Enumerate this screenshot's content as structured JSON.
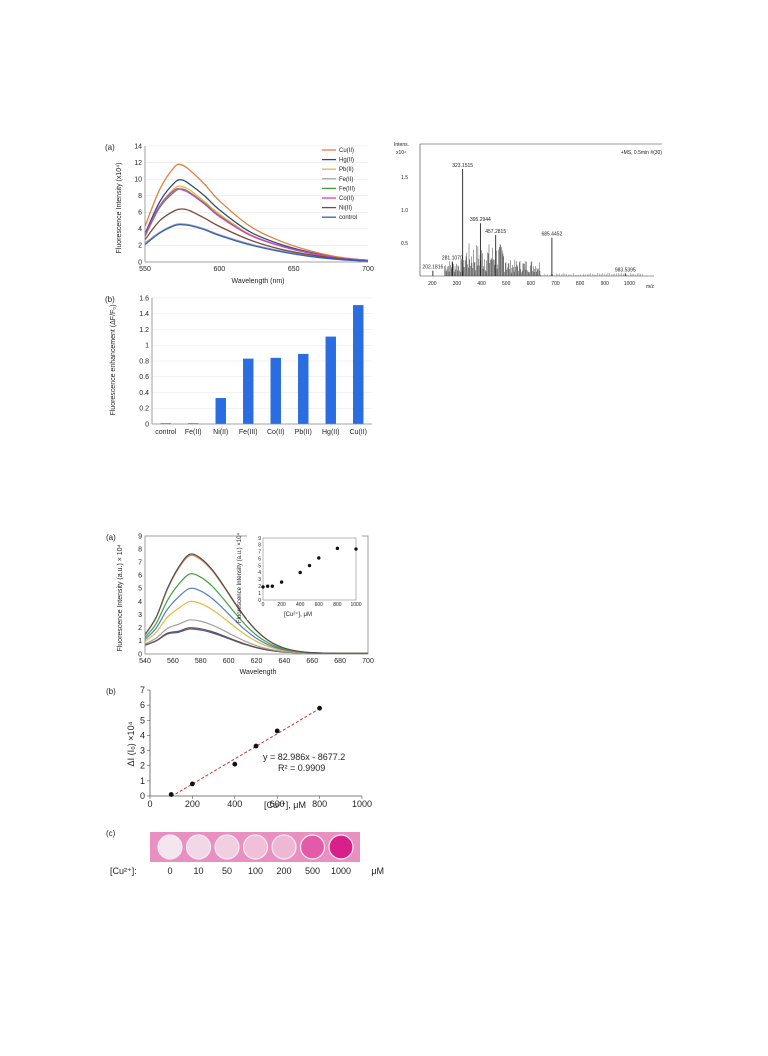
{
  "figure1": {
    "panel_a": {
      "label": "(a)",
      "chart_data": {
        "type": "line",
        "xlabel": "Wavelength (nm)",
        "ylabel": "Fluorescence Intensity (x10⁴)",
        "xlim": [
          550,
          700
        ],
        "ylim": [
          0,
          14
        ],
        "xticks": [
          550,
          600,
          650,
          700
        ],
        "yticks": [
          0,
          2,
          4,
          6,
          8,
          10,
          12,
          14
        ],
        "x": [
          550,
          560,
          570,
          575,
          580,
          590,
          600,
          620,
          640,
          660,
          680,
          700
        ],
        "series": [
          {
            "name": "Cu(II)",
            "color": "#e08040",
            "values": [
              4.3,
              8.8,
              11.5,
              11.7,
              11.1,
              9.4,
              7.4,
              4.4,
              2.6,
              1.4,
              0.6,
              0.2
            ]
          },
          {
            "name": "Hg(II)",
            "color": "#2c4a78",
            "values": [
              3.4,
              7.3,
              9.6,
              9.9,
              9.4,
              8.0,
              6.3,
              3.7,
              2.2,
              1.2,
              0.5,
              0.2
            ]
          },
          {
            "name": "Pb(II)",
            "color": "#e8b840",
            "values": [
              3.2,
              6.8,
              8.9,
              9.1,
              8.7,
              7.3,
              5.8,
              3.4,
              2.0,
              1.1,
              0.5,
              0.2
            ]
          },
          {
            "name": "Fe(II)",
            "color": "#a0a0a0",
            "values": [
              2.3,
              3.6,
              4.5,
              4.6,
              4.5,
              4.0,
              3.3,
              2.2,
              1.4,
              0.8,
              0.4,
              0.1
            ]
          },
          {
            "name": "Fe(III)",
            "color": "#40a040",
            "values": [
              3.1,
              6.6,
              8.5,
              8.8,
              8.4,
              7.1,
              5.6,
              3.3,
              2.0,
              1.1,
              0.5,
              0.2
            ]
          },
          {
            "name": "Co(II)",
            "color": "#d040c8",
            "values": [
              3.2,
              6.8,
              8.7,
              8.7,
              8.3,
              7.0,
              5.5,
              3.3,
              2.0,
              1.1,
              0.5,
              0.2
            ]
          },
          {
            "name": "Ni(II)",
            "color": "#7a4a3a",
            "values": [
              2.7,
              5.0,
              6.2,
              6.4,
              6.2,
              5.3,
              4.3,
              2.7,
              1.6,
              0.9,
              0.4,
              0.1
            ]
          },
          {
            "name": "control",
            "color": "#3060c0",
            "values": [
              2.1,
              3.5,
              4.4,
              4.5,
              4.4,
              3.9,
              3.2,
              2.1,
              1.3,
              0.7,
              0.3,
              0.1
            ]
          }
        ],
        "legend": "top-right"
      }
    },
    "panel_b": {
      "label": "(b)",
      "chart_data": {
        "type": "bar",
        "ylabel": "Fluorescence enhancement (ΔF/F₀)",
        "ylim": [
          0,
          1.6
        ],
        "yticks": [
          0,
          0.2,
          0.4,
          0.6,
          0.8,
          1,
          1.2,
          1.4,
          1.6
        ],
        "categories": [
          "control",
          "Fe(II)",
          "Ni(II)",
          "Fe(III)",
          "Co(II)",
          "Pb(II)",
          "Hg(II)",
          "Cu(II)"
        ],
        "values": [
          0.01,
          0.01,
          0.33,
          0.83,
          0.84,
          0.89,
          1.11,
          1.51
        ],
        "color": "#2a6de0"
      }
    },
    "mass_spec": {
      "header_left": "Intens.",
      "header_unit": "x10⁴",
      "header_right": "+MS, 0.5min #(30)",
      "chart_data": {
        "type": "bar",
        "xlabel": "m/z",
        "xlim": [
          150,
          1100
        ],
        "ylim": [
          0,
          2.0
        ],
        "xticks": [
          200,
          300,
          400,
          500,
          600,
          700,
          800,
          900,
          1000
        ],
        "yticks": [
          0.5,
          1.0,
          1.5
        ],
        "ytick_labels": [
          "0.5",
          "1.0",
          "1.5"
        ],
        "peaks": [
          {
            "mz": 202.1816,
            "intensity": 0.08,
            "label": "202.1816"
          },
          {
            "mz": 281.107,
            "intensity": 0.22,
            "label": "281.1070"
          },
          {
            "mz": 323.1515,
            "intensity": 1.62,
            "label": "323.1515"
          },
          {
            "mz": 395.2944,
            "intensity": 0.8,
            "label": "395.2944"
          },
          {
            "mz": 457.2815,
            "intensity": 0.62,
            "label": "457.2815"
          },
          {
            "mz": 685.4452,
            "intensity": 0.58,
            "label": "685.4452"
          },
          {
            "mz": 983.5395,
            "intensity": 0.04,
            "label": "983.5395"
          }
        ]
      }
    }
  },
  "figure2": {
    "panel_a": {
      "label": "(a)",
      "chart_data": {
        "type": "line",
        "xlabel": "Wavelength",
        "ylabel": "Fluorescence Intensity (a.u.) × 10⁴",
        "xlim": [
          540,
          700
        ],
        "ylim": [
          0,
          9
        ],
        "xticks": [
          540,
          560,
          580,
          600,
          620,
          640,
          660,
          680,
          700
        ],
        "yticks": [
          0,
          1,
          2,
          3,
          4,
          5,
          6,
          7,
          8,
          9
        ],
        "series_peaks": [
          1.9,
          2.0,
          2.6,
          4.0,
          5.0,
          6.1,
          7.5,
          7.6
        ],
        "series_colors": [
          "#3060c0",
          "#7a4a3a",
          "#a0a0a0",
          "#e8b840",
          "#5080c8",
          "#40a040",
          "#e08040",
          "#505050"
        ]
      },
      "inset": {
        "chart_data": {
          "type": "scatter",
          "xlabel": "[Cu²⁺], μM",
          "ylabel": "Fluorescence Intensity (a.u.) ×10⁴",
          "xlim": [
            0,
            1000
          ],
          "ylim": [
            0,
            9
          ],
          "xticks": [
            0,
            200,
            400,
            600,
            800,
            1000
          ],
          "yticks": [
            0,
            1,
            2,
            3,
            4,
            5,
            6,
            7,
            8,
            9
          ],
          "x": [
            0,
            50,
            100,
            200,
            400,
            500,
            600,
            800,
            1000
          ],
          "y": [
            1.9,
            2.0,
            2.0,
            2.6,
            4.0,
            5.0,
            6.1,
            7.5,
            7.4
          ]
        }
      }
    },
    "panel_b": {
      "label": "(b)",
      "chart_data": {
        "type": "scatter",
        "xlabel": "[Cu²⁺], μM",
        "ylabel": "ΔI (I₀) ×10⁴",
        "xlim": [
          0,
          1000
        ],
        "ylim": [
          0,
          7
        ],
        "xticks": [
          0,
          200,
          400,
          600,
          800,
          1000
        ],
        "yticks": [
          0,
          1,
          2,
          3,
          4,
          5,
          6,
          7
        ],
        "x": [
          100,
          200,
          400,
          500,
          600,
          800
        ],
        "y": [
          0.1,
          0.8,
          2.1,
          3.3,
          4.3,
          5.8
        ],
        "fit": {
          "slope": 82.986,
          "intercept": -8677.2,
          "scale": 10000
        },
        "equation": "y = 82.986x - 8677.2",
        "r2": "R² = 0.9909"
      }
    },
    "panel_c": {
      "label": "(c)",
      "row_label": "[Cu²⁺]:",
      "concentrations": [
        "0",
        "10",
        "50",
        "100",
        "200",
        "500",
        "1000"
      ],
      "unit": "μM",
      "well_colors": [
        "#f4e6ee",
        "#f2d8e6",
        "#f2cfe0",
        "#f0c0d8",
        "#eeb8d4",
        "#e25aa8",
        "#d8208a"
      ],
      "strip_color": "#e890c0"
    }
  }
}
